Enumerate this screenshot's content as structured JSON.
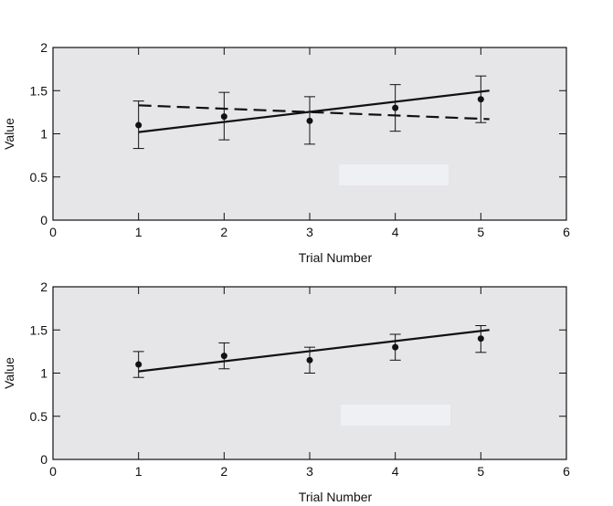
{
  "chart_data": [
    {
      "type": "scatter",
      "title": "",
      "xlabel": "Trial Number",
      "ylabel": "Value",
      "xlim": [
        0,
        6
      ],
      "ylim": [
        0,
        2
      ],
      "xticks": [
        "0",
        "1",
        "2",
        "3",
        "4",
        "5",
        "6"
      ],
      "yticks": [
        "0",
        "0.5",
        "1",
        "1.5",
        "2"
      ],
      "grid": false,
      "colors": {
        "background": "#e6e5e8",
        "ink": "#111111",
        "blank_box": "#eef0f3"
      },
      "series": [
        {
          "style": "points-with-error-bars",
          "x": [
            1,
            2,
            3,
            4,
            5
          ],
          "y": [
            1.1,
            1.2,
            1.15,
            1.3,
            1.4
          ],
          "error_low": [
            0.83,
            0.93,
            0.88,
            1.03,
            1.13
          ],
          "error_high": [
            1.38,
            1.48,
            1.43,
            1.57,
            1.67
          ]
        },
        {
          "style": "solid-line",
          "x": [
            1,
            5.1
          ],
          "y": [
            1.02,
            1.5
          ]
        },
        {
          "style": "dashed-line",
          "x": [
            1,
            5.1
          ],
          "y": [
            1.33,
            1.17
          ]
        }
      ]
    },
    {
      "type": "scatter",
      "title": "",
      "xlabel": "Trial Number",
      "ylabel": "Value",
      "xlim": [
        0,
        6
      ],
      "ylim": [
        0,
        2
      ],
      "xticks": [
        "0",
        "1",
        "2",
        "3",
        "4",
        "5",
        "6"
      ],
      "yticks": [
        "0",
        "0.5",
        "1",
        "1.5",
        "2"
      ],
      "grid": false,
      "colors": {
        "background": "#e6e5e8",
        "ink": "#111111",
        "blank_box": "#eef0f3"
      },
      "series": [
        {
          "style": "points-with-error-bars",
          "x": [
            1,
            2,
            3,
            4,
            5
          ],
          "y": [
            1.1,
            1.2,
            1.15,
            1.3,
            1.4
          ],
          "error_low": [
            0.95,
            1.05,
            1.0,
            1.15,
            1.24
          ],
          "error_high": [
            1.25,
            1.35,
            1.3,
            1.45,
            1.55
          ]
        },
        {
          "style": "solid-line",
          "x": [
            1,
            5.1
          ],
          "y": [
            1.02,
            1.5
          ]
        }
      ]
    }
  ]
}
